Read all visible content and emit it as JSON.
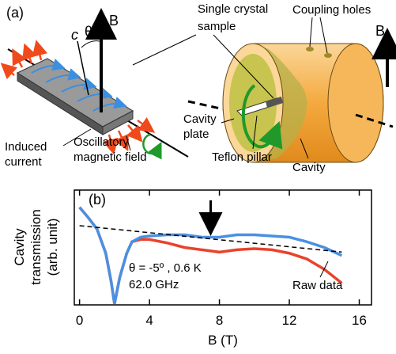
{
  "diagram": {
    "panel_label": "(a)",
    "sample_label": [
      "Single crystal",
      "sample"
    ],
    "coupling_label": "Coupling holes",
    "field_label_sample": "B",
    "axis_c": "c",
    "angle": "θ",
    "field_label_cavity": "B",
    "induced_label": [
      "Induced",
      "current"
    ],
    "oscillatory_label": [
      "Oscillatory",
      "magnetic field"
    ],
    "plate_label": [
      "Cavity",
      "plate"
    ],
    "pillar_label": "Teflon pillar",
    "cavity_label": "Cavity"
  },
  "chart_data": {
    "type": "line",
    "panel_label": "(b)",
    "x_label": "B (T)",
    "y_label": [
      "Cavity",
      "transmission",
      "(arb. unit)"
    ],
    "annotations": [
      "θ = -5º , 0.6 K",
      "62.0 GHz"
    ],
    "arrow_x": 7.5,
    "xlim": [
      -0.3,
      16.7
    ],
    "ylim": [
      0,
      10
    ],
    "xticks": [
      0,
      4,
      8,
      12,
      16
    ],
    "series": [
      {
        "color": "#4a90e2",
        "x": [
          0,
          0.5,
          1,
          1.5,
          1.8,
          2,
          2.3,
          2.7,
          3,
          3.5,
          4,
          5,
          6,
          7,
          7.5,
          8,
          9,
          10,
          11,
          12,
          13,
          14,
          15
        ],
        "values": [
          8.5,
          7.6,
          6.6,
          4.5,
          2.1,
          0.1,
          2.4,
          4.5,
          5.5,
          5.9,
          6.0,
          6.1,
          6.1,
          5.9,
          5.9,
          5.9,
          6.1,
          6.1,
          6.0,
          5.9,
          5.5,
          5.0,
          4.3
        ]
      },
      {
        "name": "Raw data",
        "color": "#e8432b",
        "x": [
          0,
          0.5,
          1,
          1.5,
          1.8,
          2,
          2.3,
          2.7,
          3,
          3.5,
          4,
          5,
          6,
          7,
          8,
          9,
          10,
          11,
          12,
          13,
          14,
          15
        ],
        "values": [
          8.5,
          7.6,
          6.6,
          4.5,
          2.1,
          0.1,
          2.4,
          4.5,
          5.5,
          5.7,
          5.7,
          5.4,
          5.0,
          4.8,
          4.6,
          4.8,
          4.9,
          4.8,
          4.5,
          4.0,
          3.1,
          1.9
        ]
      },
      {
        "color": "#000000",
        "dash": true,
        "x": [
          0,
          15
        ],
        "values": [
          6.9,
          4.6
        ]
      }
    ]
  }
}
